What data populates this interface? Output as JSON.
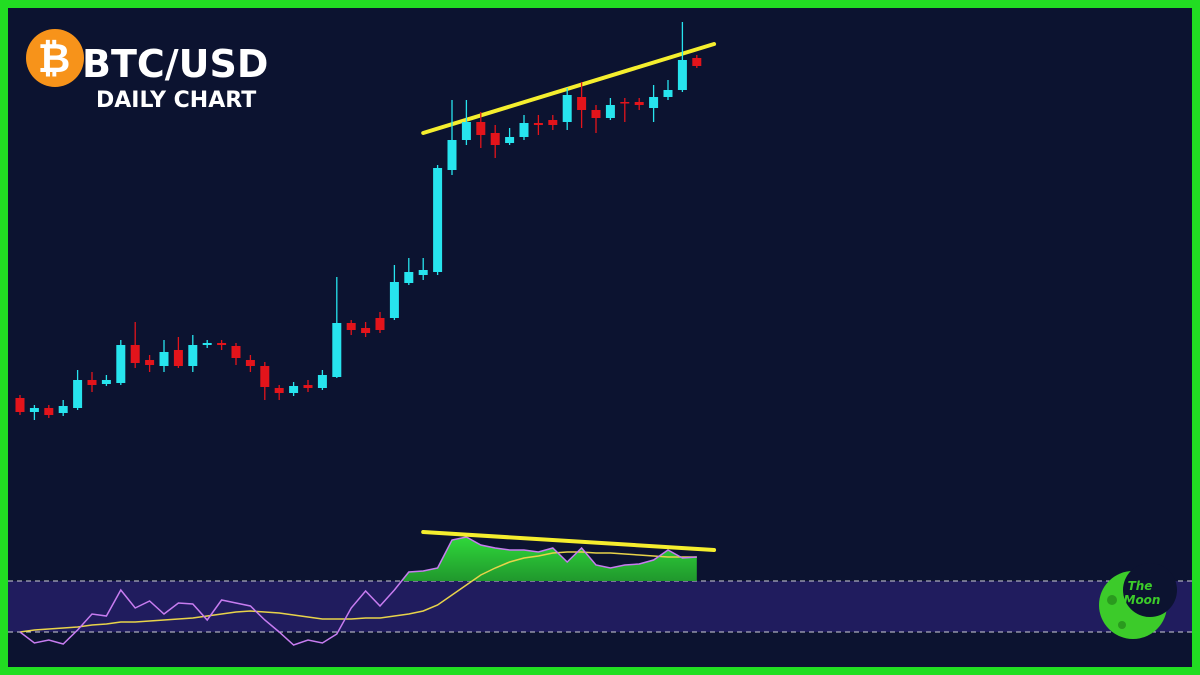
{
  "title": "BTC/USD",
  "subtitle": "DAILY CHART",
  "icon": "₿",
  "logo_text": [
    "The",
    "Moon"
  ],
  "chart_data": {
    "type": "candlestick",
    "ylim": [
      0,
      675
    ],
    "up_color": "#27e4ee",
    "down_color": "#e3141b",
    "open": [
      277,
      263,
      267,
      262,
      267,
      295,
      291,
      292,
      330,
      315,
      309,
      325,
      309,
      330,
      332,
      329,
      315,
      309,
      287,
      282,
      290,
      287,
      298,
      352,
      347,
      357,
      357,
      392,
      400,
      403,
      505,
      535,
      553,
      542,
      532,
      538,
      552,
      555,
      553,
      578,
      565,
      557,
      573,
      573,
      567,
      578,
      585,
      617
    ],
    "high": [
      280,
      270,
      270,
      275,
      305,
      303,
      300,
      335,
      353,
      320,
      335,
      338,
      340,
      335,
      335,
      332,
      320,
      313,
      290,
      293,
      295,
      305,
      398,
      355,
      353,
      363,
      410,
      417,
      417,
      510,
      575,
      575,
      563,
      550,
      547,
      560,
      560,
      560,
      587,
      593,
      570,
      577,
      577,
      577,
      590,
      595,
      653,
      620
    ],
    "low": [
      260,
      255,
      257,
      259,
      265,
      283,
      289,
      290,
      307,
      303,
      303,
      307,
      303,
      327,
      325,
      310,
      303,
      275,
      275,
      279,
      283,
      285,
      297,
      340,
      338,
      342,
      355,
      390,
      395,
      400,
      500,
      530,
      527,
      517,
      530,
      535,
      540,
      545,
      545,
      547,
      542,
      555,
      553,
      565,
      553,
      575,
      583,
      607
    ],
    "close": [
      263,
      267,
      260,
      269,
      295,
      290,
      295,
      330,
      312,
      310,
      323,
      309,
      330,
      332,
      330,
      317,
      309,
      288,
      282,
      289,
      287,
      300,
      352,
      345,
      342,
      345,
      393,
      403,
      405,
      507,
      535,
      553,
      540,
      530,
      538,
      552,
      550,
      550,
      580,
      565,
      557,
      570,
      572,
      570,
      578,
      585,
      615,
      609
    ],
    "trendline": {
      "color": "#f5ee2e",
      "from": [
        28,
        542
      ],
      "to": [
        48.2,
        631
      ]
    },
    "rsi": {
      "color": "#c77cf0",
      "values": [
        43,
        32,
        35,
        31,
        45,
        61,
        59,
        85,
        67,
        74,
        61,
        72,
        71,
        55,
        75,
        72,
        69,
        55,
        43,
        30,
        35,
        32,
        41,
        67,
        84,
        69,
        85,
        103,
        104,
        107,
        135,
        138,
        130,
        127,
        125,
        125,
        123,
        127,
        113,
        127,
        110,
        107,
        110,
        111,
        115,
        125,
        117,
        118
      ],
      "ma": {
        "color": "#e8d34a",
        "values": [
          43,
          45,
          46,
          47,
          48,
          50,
          51,
          53,
          53,
          54,
          55,
          56,
          57,
          59,
          61,
          63,
          64,
          63,
          62,
          60,
          58,
          56,
          56,
          56,
          57,
          57,
          59,
          61,
          64,
          70,
          80,
          90,
          100,
          107,
          113,
          117,
          119,
          122,
          123,
          123,
          122,
          122,
          121,
          120,
          119,
          118,
          118,
          118
        ]
      },
      "levels": [
        94,
        43
      ],
      "trendline": {
        "color": "#f5ee2e",
        "from": [
          28,
          143
        ],
        "to": [
          48.2,
          125
        ]
      }
    }
  }
}
